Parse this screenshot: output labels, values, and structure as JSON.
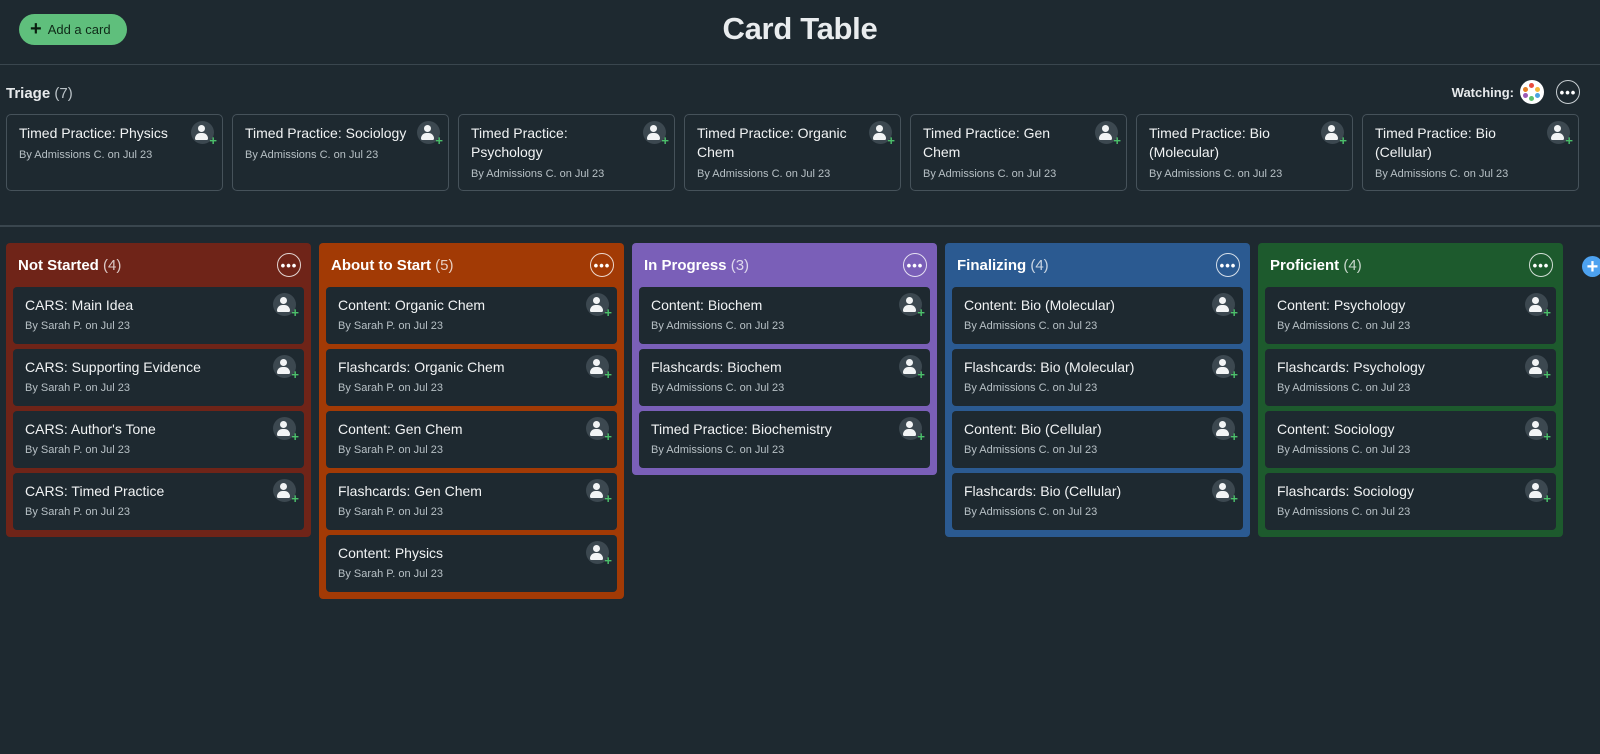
{
  "header": {
    "add_card_label": "Add a card",
    "title": "Card Table"
  },
  "triage": {
    "title": "Triage",
    "count": "(7)",
    "watching_label": "Watching:",
    "cards": [
      {
        "title": "Timed Practice: Physics",
        "meta": "By Admissions C. on Jul 23"
      },
      {
        "title": "Timed Practice: Sociology",
        "meta": "By Admissions C. on Jul 23"
      },
      {
        "title": "Timed Practice: Psychology",
        "meta": "By Admissions C. on Jul 23"
      },
      {
        "title": "Timed Practice: Organic Chem",
        "meta": "By Admissions C. on Jul 23"
      },
      {
        "title": "Timed Practice: Gen Chem",
        "meta": "By Admissions C. on Jul 23"
      },
      {
        "title": "Timed Practice: Bio (Molecular)",
        "meta": "By Admissions C. on Jul 23"
      },
      {
        "title": "Timed Practice: Bio (Cellular)",
        "meta": "By Admissions C. on Jul 23"
      }
    ]
  },
  "columns": [
    {
      "title": "Not Started",
      "count": "(4)",
      "color": "#6f2418",
      "cards": [
        {
          "title": "CARS: Main Idea",
          "meta": "By Sarah P. on Jul 23"
        },
        {
          "title": "CARS: Supporting Evidence",
          "meta": "By Sarah P. on Jul 23"
        },
        {
          "title": "CARS: Author's Tone",
          "meta": "By Sarah P. on Jul 23"
        },
        {
          "title": "CARS: Timed Practice",
          "meta": "By Sarah P. on Jul 23"
        }
      ]
    },
    {
      "title": "About to Start",
      "count": "(5)",
      "color": "#a23a05",
      "cards": [
        {
          "title": "Content: Organic Chem",
          "meta": "By Sarah P. on Jul 23"
        },
        {
          "title": "Flashcards: Organic Chem",
          "meta": "By Sarah P. on Jul 23"
        },
        {
          "title": "Content: Gen Chem",
          "meta": "By Sarah P. on Jul 23"
        },
        {
          "title": "Flashcards: Gen Chem",
          "meta": "By Sarah P. on Jul 23"
        },
        {
          "title": "Content: Physics",
          "meta": "By Sarah P. on Jul 23"
        }
      ]
    },
    {
      "title": "In Progress",
      "count": "(3)",
      "color": "#7a5fb8",
      "cards": [
        {
          "title": "Content: Biochem",
          "meta": "By Admissions C. on Jul 23"
        },
        {
          "title": "Flashcards: Biochem",
          "meta": "By Admissions C. on Jul 23"
        },
        {
          "title": "Timed Practice: Biochemistry",
          "meta": "By Admissions C. on Jul 23"
        }
      ]
    },
    {
      "title": "Finalizing",
      "count": "(4)",
      "color": "#2b5a91",
      "cards": [
        {
          "title": "Content: Bio (Molecular)",
          "meta": "By Admissions C. on Jul 23"
        },
        {
          "title": "Flashcards: Bio (Molecular)",
          "meta": "By Admissions C. on Jul 23"
        },
        {
          "title": "Content: Bio (Cellular)",
          "meta": "By Admissions C. on Jul 23"
        },
        {
          "title": "Flashcards: Bio (Cellular)",
          "meta": "By Admissions C. on Jul 23"
        }
      ]
    },
    {
      "title": "Proficient",
      "count": "(4)",
      "color": "#1d5a2d",
      "cards": [
        {
          "title": "Content: Psychology",
          "meta": "By Admissions C. on Jul 23"
        },
        {
          "title": "Flashcards: Psychology",
          "meta": "By Admissions C. on Jul 23"
        },
        {
          "title": "Content: Sociology",
          "meta": "By Admissions C. on Jul 23"
        },
        {
          "title": "Flashcards: Sociology",
          "meta": "By Admissions C. on Jul 23"
        }
      ]
    }
  ],
  "icons": {
    "more": "•••",
    "plus": "+"
  }
}
